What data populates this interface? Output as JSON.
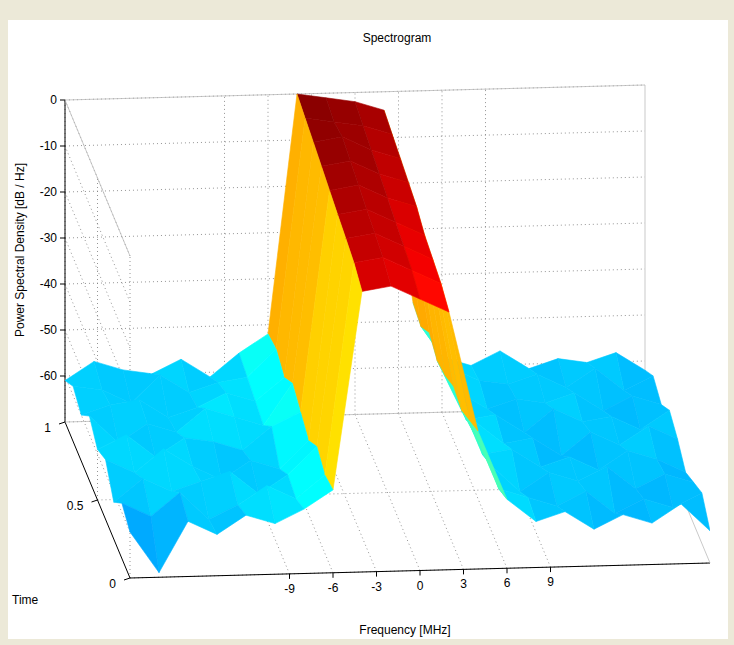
{
  "chart_data": {
    "type": "surface",
    "title": "Spectrogram",
    "x_label": "Frequency [MHz]",
    "y_label": "Time",
    "z_label": "Power Spectral Density [dB / Hz]",
    "x": [
      -20,
      -18,
      -16,
      -14,
      -12,
      -10,
      -8,
      -6,
      -4,
      -2,
      0,
      2,
      4,
      6,
      8,
      10,
      12,
      14,
      16,
      18,
      20
    ],
    "y": [
      0,
      0.125,
      0.25,
      0.375,
      0.5,
      0.625,
      0.75,
      0.875,
      1
    ],
    "z": [
      [
        -60,
        -69,
        -58,
        -61,
        -57,
        -59,
        -56,
        -52,
        -9,
        -8,
        -11,
        -14,
        -40,
        -55,
        -60,
        -58,
        -62,
        -59,
        -61,
        -57,
        -63
      ],
      [
        -58,
        -61,
        -56,
        -62,
        -59,
        -55,
        -58,
        -53,
        -7,
        -6,
        -9,
        -12,
        -42,
        -57,
        -59,
        -61,
        -58,
        -63,
        -60,
        -62,
        -59
      ],
      [
        -62,
        -57,
        -60,
        -58,
        -56,
        -61,
        -57,
        -51,
        -6,
        -5,
        -8,
        -11,
        -44,
        -56,
        -62,
        -58,
        -60,
        -57,
        -62,
        -59,
        -61
      ],
      [
        -57,
        -60,
        -55,
        -59,
        -62,
        -58,
        -60,
        -54,
        -5,
        -4,
        -7,
        -10,
        -43,
        -58,
        -57,
        -61,
        -59,
        -62,
        -58,
        -60,
        -63
      ],
      [
        -59,
        -56,
        -61,
        -57,
        -58,
        -60,
        -55,
        -52,
        -4,
        -3,
        -6,
        -8,
        -45,
        -55,
        -60,
        -59,
        -63,
        -58,
        -61,
        -57,
        -60
      ],
      [
        -56,
        -62,
        -58,
        -60,
        -55,
        -57,
        -59,
        -50,
        -3,
        -2,
        -5,
        -7,
        -46,
        -59,
        -58,
        -62,
        -57,
        -60,
        -59,
        -62,
        -58
      ],
      [
        -60,
        -58,
        -57,
        -61,
        -59,
        -56,
        -58,
        -53,
        -2,
        -1,
        -4,
        -6,
        -44,
        -57,
        -61,
        -59,
        -60,
        -58,
        -62,
        -59,
        -61
      ],
      [
        -58,
        -59,
        -62,
        -56,
        -60,
        -58,
        -57,
        -51,
        -1,
        -2,
        -3,
        -5,
        -47,
        -56,
        -59,
        -60,
        -58,
        -61,
        -57,
        -62,
        -59
      ],
      [
        -61,
        -57,
        -59,
        -60,
        -57,
        -61,
        -56,
        -52,
        0,
        -1,
        -2,
        -4,
        -46,
        -58,
        -60,
        -57,
        -61,
        -59,
        -60,
        -58,
        -62
      ]
    ],
    "xlim": [
      -20,
      20
    ],
    "ylim": [
      0,
      1
    ],
    "zlim": [
      -70,
      0
    ],
    "xticks": [
      -9,
      -6,
      -3,
      0,
      3,
      6,
      9
    ],
    "yticks": [
      0,
      0.5,
      1
    ],
    "zticks": [
      -60,
      -50,
      -40,
      -30,
      -20,
      -10,
      0
    ],
    "grid": true
  }
}
